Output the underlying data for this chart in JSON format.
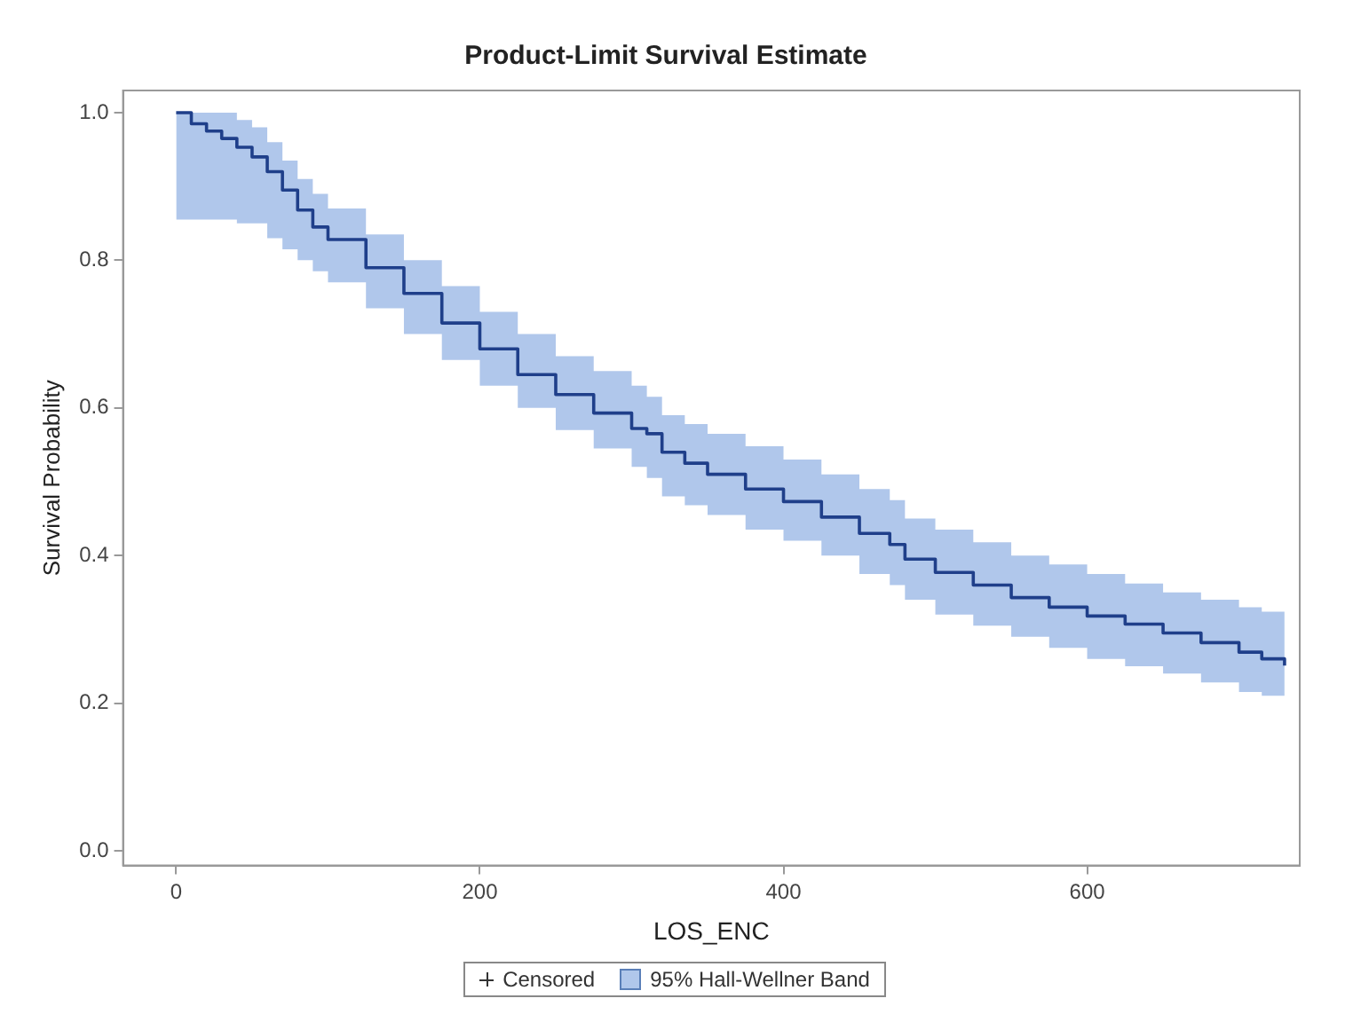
{
  "chart_data": {
    "type": "step",
    "title": "Product-Limit Survival Estimate",
    "xlabel": "LOS_ENC",
    "ylabel": "Survival Probability",
    "x": [
      0,
      10,
      20,
      30,
      40,
      50,
      60,
      70,
      80,
      90,
      100,
      125,
      150,
      175,
      200,
      225,
      250,
      275,
      300,
      310,
      320,
      335,
      350,
      375,
      400,
      425,
      450,
      470,
      480,
      500,
      525,
      550,
      575,
      600,
      625,
      650,
      675,
      700,
      715,
      730
    ],
    "series": [
      {
        "type": "step",
        "name": "95% Hall-Wellner Band",
        "color": "#1f3f8a",
        "values": [
          1.0,
          0.985,
          0.975,
          0.965,
          0.953,
          0.94,
          0.92,
          0.895,
          0.868,
          0.845,
          0.828,
          0.79,
          0.755,
          0.715,
          0.68,
          0.645,
          0.618,
          0.593,
          0.572,
          0.565,
          0.54,
          0.525,
          0.51,
          0.49,
          0.473,
          0.452,
          0.43,
          0.415,
          0.395,
          0.377,
          0.36,
          0.343,
          0.33,
          0.318,
          0.307,
          0.295,
          0.282,
          0.269,
          0.26,
          0.251
        ],
        "lower": [
          0.855,
          0.855,
          0.855,
          0.855,
          0.85,
          0.85,
          0.83,
          0.815,
          0.8,
          0.785,
          0.77,
          0.735,
          0.7,
          0.665,
          0.63,
          0.6,
          0.57,
          0.545,
          0.52,
          0.505,
          0.48,
          0.468,
          0.455,
          0.435,
          0.42,
          0.4,
          0.375,
          0.36,
          0.34,
          0.32,
          0.305,
          0.29,
          0.275,
          0.26,
          0.25,
          0.24,
          0.228,
          0.215,
          0.21,
          0.205
        ],
        "upper": [
          1.0,
          1.0,
          1.0,
          1.0,
          0.99,
          0.98,
          0.96,
          0.935,
          0.91,
          0.89,
          0.87,
          0.835,
          0.8,
          0.765,
          0.73,
          0.7,
          0.67,
          0.65,
          0.63,
          0.615,
          0.59,
          0.578,
          0.565,
          0.548,
          0.53,
          0.51,
          0.49,
          0.475,
          0.45,
          0.435,
          0.418,
          0.4,
          0.388,
          0.375,
          0.362,
          0.35,
          0.34,
          0.33,
          0.324,
          0.318
        ]
      },
      {
        "type": "scatter",
        "name": "Censored",
        "color": "#333333",
        "marker": "cross",
        "values": [
          null,
          null,
          null,
          null,
          null,
          null,
          null,
          null,
          null,
          null,
          null,
          null,
          null,
          null,
          null,
          null,
          null,
          null,
          null,
          null,
          null,
          null,
          null,
          null,
          null,
          null,
          null,
          null,
          null,
          null,
          null,
          null,
          null,
          null,
          null,
          null,
          null,
          null,
          null,
          null
        ]
      }
    ],
    "xlim": [
      -35,
      740
    ],
    "xticks": [
      0,
      200,
      400,
      600
    ],
    "ylim": [
      -0.02,
      1.03
    ],
    "yticks": [
      {
        "value": 0,
        "label": "0.0"
      },
      {
        "value": 0.2,
        "label": "0.2"
      },
      {
        "value": 0.4,
        "label": "0.4"
      },
      {
        "value": 0.6,
        "label": "0.6"
      },
      {
        "value": 0.8,
        "label": "0.8"
      },
      {
        "value": 1,
        "label": "1.0"
      }
    ],
    "grid": false,
    "legend": "bottom"
  }
}
